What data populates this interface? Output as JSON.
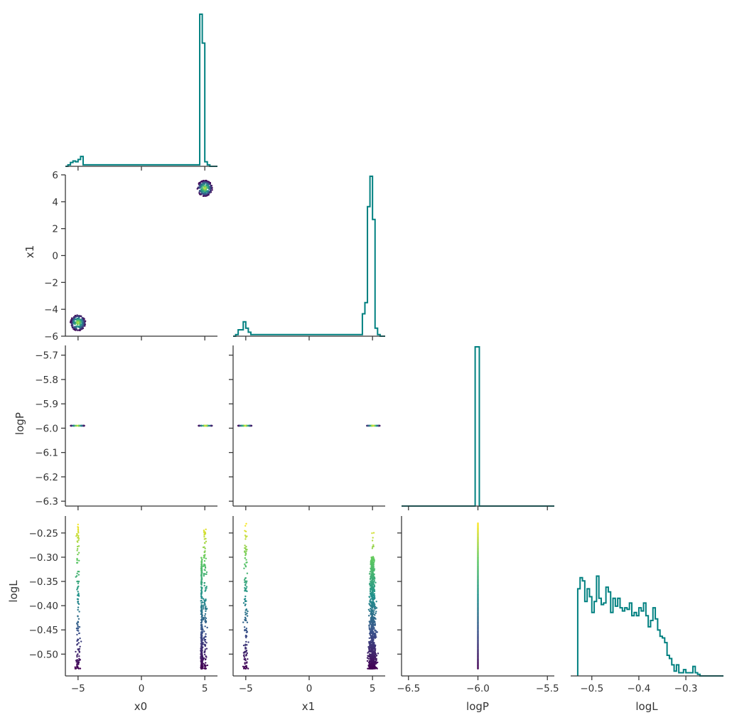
{
  "figure": {
    "type": "corner_plot",
    "hist_color": "#008080",
    "colormap": "viridis",
    "colormap_stops": [
      "#440154",
      "#3b528b",
      "#21918c",
      "#5ec962",
      "#fde725"
    ]
  },
  "chart_data": [
    {
      "id": "hist-x0",
      "type": "histogram",
      "variable": "x0",
      "xlim": [
        -6,
        6
      ],
      "xticks": [
        -5,
        0,
        5
      ],
      "bins": [
        [
          -5.8,
          -5.6,
          0.01
        ],
        [
          -5.6,
          -5.4,
          0.025
        ],
        [
          -5.4,
          -5.2,
          0.035
        ],
        [
          -5.2,
          -5.0,
          0.03
        ],
        [
          -5.0,
          -4.8,
          0.045
        ],
        [
          -4.8,
          -4.6,
          0.065
        ],
        [
          -4.6,
          -4.4,
          0.01
        ],
        [
          4.4,
          4.6,
          0.01
        ],
        [
          4.6,
          4.8,
          1.0
        ],
        [
          4.8,
          5.0,
          0.81
        ],
        [
          5.0,
          5.2,
          0.03
        ],
        [
          5.2,
          5.4,
          0.01
        ]
      ]
    },
    {
      "id": "hist-x1",
      "type": "histogram",
      "variable": "x1",
      "xlim": [
        -6,
        6
      ],
      "xticks": [
        -5,
        0,
        5
      ],
      "bins": [
        [
          -5.8,
          -5.6,
          0.01
        ],
        [
          -5.6,
          -5.4,
          0.04
        ],
        [
          -5.4,
          -5.2,
          0.04
        ],
        [
          -5.2,
          -5.0,
          0.09
        ],
        [
          -5.0,
          -4.8,
          0.05
        ],
        [
          -4.8,
          -4.6,
          0.025
        ],
        [
          -4.6,
          -4.4,
          0.01
        ],
        [
          4.2,
          4.4,
          0.14
        ],
        [
          4.4,
          4.6,
          0.21
        ],
        [
          4.6,
          4.8,
          0.81
        ],
        [
          4.8,
          5.0,
          1.0
        ],
        [
          5.0,
          5.2,
          0.73
        ],
        [
          5.2,
          5.4,
          0.05
        ],
        [
          5.4,
          5.6,
          0.01
        ]
      ]
    },
    {
      "id": "hist-logP",
      "type": "histogram",
      "variable": "logP",
      "xlim": [
        -6.55,
        -5.45
      ],
      "xticks": [
        -6.5,
        -6.0,
        -5.5
      ],
      "bins": [
        [
          -6.02,
          -5.99,
          1.0
        ]
      ]
    },
    {
      "id": "hist-logL",
      "type": "histogram",
      "variable": "logL",
      "xlim": [
        -0.545,
        -0.22
      ],
      "xticks": [
        -0.5,
        -0.4,
        -0.3
      ],
      "bins_start": -0.53,
      "bins_width": 0.005,
      "bins_values": [
        0.55,
        0.62,
        0.6,
        0.47,
        0.55,
        0.5,
        0.4,
        0.47,
        0.63,
        0.49,
        0.45,
        0.46,
        0.56,
        0.53,
        0.4,
        0.49,
        0.44,
        0.49,
        0.43,
        0.41,
        0.43,
        0.42,
        0.46,
        0.38,
        0.4,
        0.38,
        0.43,
        0.41,
        0.46,
        0.38,
        0.31,
        0.35,
        0.43,
        0.36,
        0.29,
        0.25,
        0.24,
        0.21,
        0.13,
        0.11,
        0.07,
        0.03,
        0.07,
        0.02,
        0.02,
        0.04,
        0.02,
        0.02,
        0.02,
        0.06,
        0.02,
        0.01
      ]
    },
    {
      "id": "scatter-x0-x1",
      "type": "scatter",
      "xvar": "x0",
      "yvar": "x1",
      "xlim": [
        -6,
        6
      ],
      "ylim": [
        -6,
        6
      ],
      "yticks": [
        -6,
        -4,
        -2,
        0,
        2,
        4,
        6
      ],
      "ylabel": "x1",
      "clusters": [
        {
          "x": -5.0,
          "y": -5.0,
          "radius": 0.6,
          "n": 220
        },
        {
          "x": 5.0,
          "y": 5.0,
          "radius": 0.6,
          "n": 220
        }
      ]
    },
    {
      "id": "scatter-x0-logP",
      "type": "scatter",
      "xvar": "x0",
      "yvar": "logP",
      "xlim": [
        -6,
        6
      ],
      "ylim": [
        -6.32,
        -5.66
      ],
      "yticks": [
        -5.7,
        -5.8,
        -5.9,
        -6.0,
        -6.1,
        -6.2,
        -6.3
      ],
      "ylabel": "logP",
      "y_value": -5.99,
      "x_ranges": [
        [
          -5.6,
          -4.5
        ],
        [
          4.5,
          5.6
        ]
      ]
    },
    {
      "id": "scatter-x1-logP",
      "type": "scatter",
      "xvar": "x1",
      "yvar": "logP",
      "xlim": [
        -6,
        6
      ],
      "ylim": [
        -6.32,
        -5.66
      ],
      "y_value": -5.99,
      "x_ranges": [
        [
          -5.6,
          -4.5
        ],
        [
          4.5,
          5.6
        ]
      ]
    },
    {
      "id": "scatter-x0-logL",
      "type": "scatter",
      "xvar": "x0",
      "yvar": "logL",
      "xlim": [
        -6,
        6
      ],
      "ylim": [
        -0.545,
        -0.215
      ],
      "xticks": [
        -5,
        0,
        5
      ],
      "yticks": [
        -0.25,
        -0.3,
        -0.35,
        -0.4,
        -0.45,
        -0.5
      ],
      "xlabel": "x0",
      "ylabel": "logL",
      "columns": [
        {
          "x": -5.0,
          "x_spread": 0.35,
          "y_min": -0.53,
          "y_max": -0.23,
          "n": 130
        },
        {
          "x": 5.0,
          "x_spread": 0.35,
          "y_min": -0.53,
          "y_max": -0.24,
          "n": 140
        },
        {
          "x": 4.75,
          "x_spread": 0.12,
          "y_min": -0.53,
          "y_max": -0.3,
          "n": 320
        }
      ]
    },
    {
      "id": "scatter-x1-logL",
      "type": "scatter",
      "xvar": "x1",
      "yvar": "logL",
      "xlim": [
        -6,
        6
      ],
      "ylim": [
        -0.545,
        -0.215
      ],
      "xticks": [
        -5,
        0,
        5
      ],
      "xlabel": "x1",
      "columns": [
        {
          "x": -5.0,
          "x_spread": 0.35,
          "y_min": -0.53,
          "y_max": -0.23,
          "n": 130
        },
        {
          "x": 5.0,
          "x_spread": 0.55,
          "y_min": -0.53,
          "y_max": -0.3,
          "n": 900
        },
        {
          "x": 5.0,
          "x_spread": 0.3,
          "y_min": -0.53,
          "y_max": -0.24,
          "n": 80
        }
      ]
    },
    {
      "id": "scatter-logP-logL",
      "type": "scatter",
      "xvar": "logP",
      "yvar": "logL",
      "xlim": [
        -6.55,
        -5.45
      ],
      "ylim": [
        -0.545,
        -0.215
      ],
      "xticks": [
        -6.5,
        -6.0,
        -5.5
      ],
      "xlabel": "logP",
      "x_value": -6.0,
      "y_range": [
        -0.53,
        -0.23
      ],
      "n": 300
    }
  ],
  "labels": {
    "x0": "x0",
    "x1": "x1",
    "logP": "logP",
    "logL": "logL"
  },
  "tick_labels": {
    "x": [
      "−5",
      "0",
      "5"
    ],
    "logP_x": [
      "−6.5",
      "−6.0",
      "−5.5"
    ],
    "logL_x": [
      "−0.5",
      "−0.4",
      "−0.3"
    ],
    "x1_y": [
      "−6",
      "−4",
      "−2",
      "0",
      "2",
      "4",
      "6"
    ],
    "logP_y": [
      "−5.7",
      "−5.8",
      "−5.9",
      "−6.0",
      "−6.1",
      "−6.2",
      "−6.3"
    ],
    "logL_y": [
      "−0.25",
      "−0.30",
      "−0.35",
      "−0.40",
      "−0.45",
      "−0.50"
    ]
  }
}
